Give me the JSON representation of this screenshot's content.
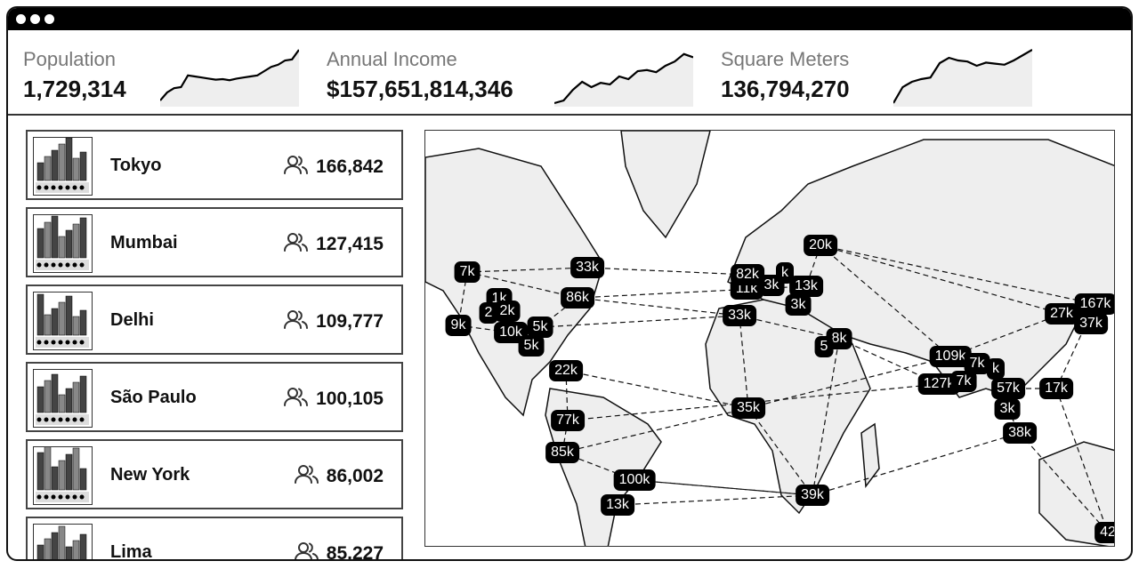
{
  "stats": [
    {
      "label": "Population",
      "value": "1,729,314",
      "trend": [
        5,
        20,
        28,
        30,
        52,
        50,
        48,
        46,
        44,
        45,
        43,
        46,
        48,
        50,
        52,
        60,
        68,
        72,
        80,
        82,
        100
      ]
    },
    {
      "label": "Annual Income",
      "value": "$157,651,814,346",
      "trend": [
        0,
        5,
        25,
        40,
        30,
        38,
        35,
        50,
        45,
        60,
        62,
        58,
        70,
        78,
        92,
        86
      ]
    },
    {
      "label": "Square Meters",
      "value": "136,794,270",
      "trend": [
        0,
        30,
        40,
        45,
        48,
        75,
        85,
        80,
        78,
        70,
        76,
        74,
        72,
        80,
        90,
        100
      ]
    }
  ],
  "cities": [
    {
      "name": "Tokyo",
      "population": "166,842"
    },
    {
      "name": "Mumbai",
      "population": "127,415"
    },
    {
      "name": "Delhi",
      "population": "109,777"
    },
    {
      "name": "São Paulo",
      "population": "100,105"
    },
    {
      "name": "New York",
      "population": "86,002"
    },
    {
      "name": "Lima",
      "population": "85,227"
    }
  ],
  "map": {
    "markers": [
      "7k",
      "33k",
      "86k",
      "1k",
      "2",
      "2k",
      "9k",
      "10k",
      "5k",
      "5k",
      "22k",
      "77k",
      "85k",
      "100k",
      "13k",
      "35k",
      "39k",
      "11k",
      "82k",
      "3k",
      "k",
      "13k",
      "3k",
      "33k",
      "20k",
      "8k",
      "5",
      "109k",
      "7k",
      "k",
      "127k",
      "7k",
      "57k",
      "3k",
      "38k",
      "17k",
      "27k",
      "167k",
      "37k",
      "42"
    ]
  },
  "colors": {
    "land": "#eeeeee",
    "marker": "#000000",
    "titlebar": "#000000"
  }
}
